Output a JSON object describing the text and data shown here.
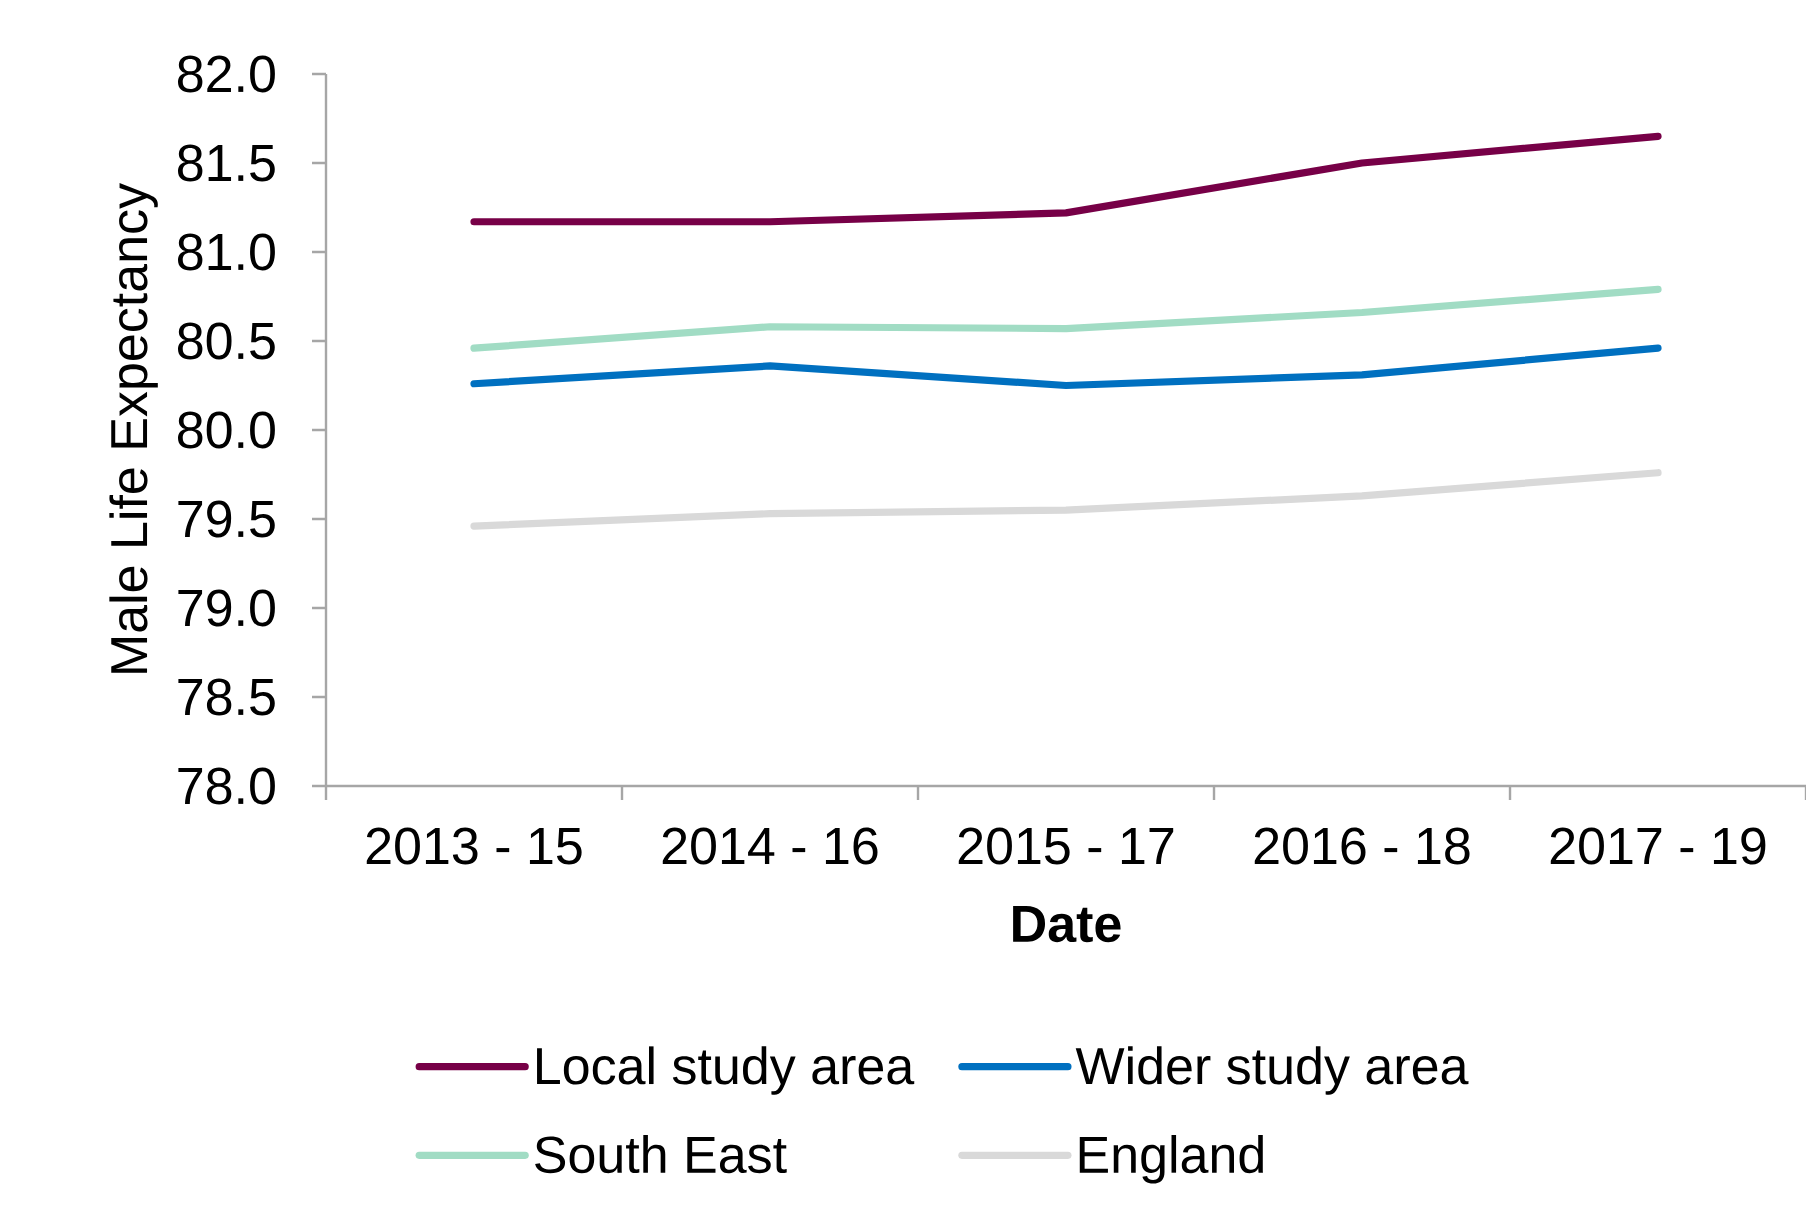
{
  "chart_data": {
    "type": "line",
    "xlabel": "Date",
    "ylabel": "Male Life Expectancy",
    "categories": [
      "2013 - 15",
      "2014 - 16",
      "2015 - 17",
      "2016 - 18",
      "2017 - 19"
    ],
    "series": [
      {
        "name": "Local study area",
        "color": "#770047",
        "values": [
          81.17,
          81.17,
          81.22,
          81.5,
          81.65
        ]
      },
      {
        "name": "Wider study area",
        "color": "#0070c0",
        "values": [
          80.26,
          80.36,
          80.25,
          80.31,
          80.46
        ]
      },
      {
        "name": "South East",
        "color": "#a1dcc4",
        "values": [
          80.46,
          80.58,
          80.57,
          80.66,
          80.79
        ]
      },
      {
        "name": "England",
        "color": "#d9d9d9",
        "values": [
          79.46,
          79.53,
          79.55,
          79.63,
          79.76
        ]
      }
    ],
    "ylim": [
      78,
      82
    ],
    "yticks": [
      {
        "value": 78,
        "label": "78.0"
      },
      {
        "value": 78.5,
        "label": "78.5"
      },
      {
        "value": 79,
        "label": "79.0"
      },
      {
        "value": 79.5,
        "label": "79.5"
      },
      {
        "value": 80,
        "label": "80.0"
      },
      {
        "value": 80.5,
        "label": "80.5"
      },
      {
        "value": 81,
        "label": "81.0"
      },
      {
        "value": 81.5,
        "label": "81.5"
      },
      {
        "value": 82,
        "label": "82.0"
      }
    ],
    "legend": "bottom",
    "marker": "none",
    "line_style": "solid"
  }
}
